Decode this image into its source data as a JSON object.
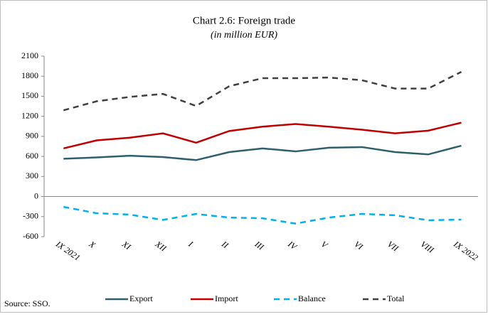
{
  "chart_data": {
    "type": "line",
    "title": "Chart 2.6: Foreign trade",
    "subtitle": "(in million EUR)",
    "categories": [
      "IX 2021",
      "X",
      "XI",
      "XII",
      "I",
      "II",
      "III",
      "IV",
      "V",
      "VI",
      "VII",
      "VIII",
      "IX 2022"
    ],
    "series": [
      {
        "name": "Export",
        "color": "#2e5f6e",
        "dashed": false,
        "values": [
          565,
          585,
          610,
          590,
          545,
          665,
          720,
          675,
          730,
          740,
          665,
          630,
          760
        ]
      },
      {
        "name": "Import",
        "color": "#c00000",
        "dashed": false,
        "values": [
          720,
          840,
          880,
          945,
          805,
          980,
          1045,
          1085,
          1045,
          1000,
          945,
          985,
          1105
        ]
      },
      {
        "name": "Balance",
        "color": "#00b0f0",
        "dashed": true,
        "values": [
          -155,
          -250,
          -270,
          -350,
          -260,
          -315,
          -325,
          -405,
          -315,
          -260,
          -280,
          -355,
          -345
        ]
      },
      {
        "name": "Total",
        "color": "#404040",
        "dashed": true,
        "values": [
          1290,
          1425,
          1490,
          1535,
          1355,
          1650,
          1770,
          1770,
          1780,
          1740,
          1615,
          1615,
          1865
        ]
      }
    ],
    "ylim": [
      -600,
      2100
    ],
    "yticks": [
      -600,
      -300,
      0,
      300,
      600,
      900,
      1200,
      1500,
      1800,
      2100
    ],
    "grid": false,
    "legend": "bottom",
    "source": "Source: SSO."
  }
}
